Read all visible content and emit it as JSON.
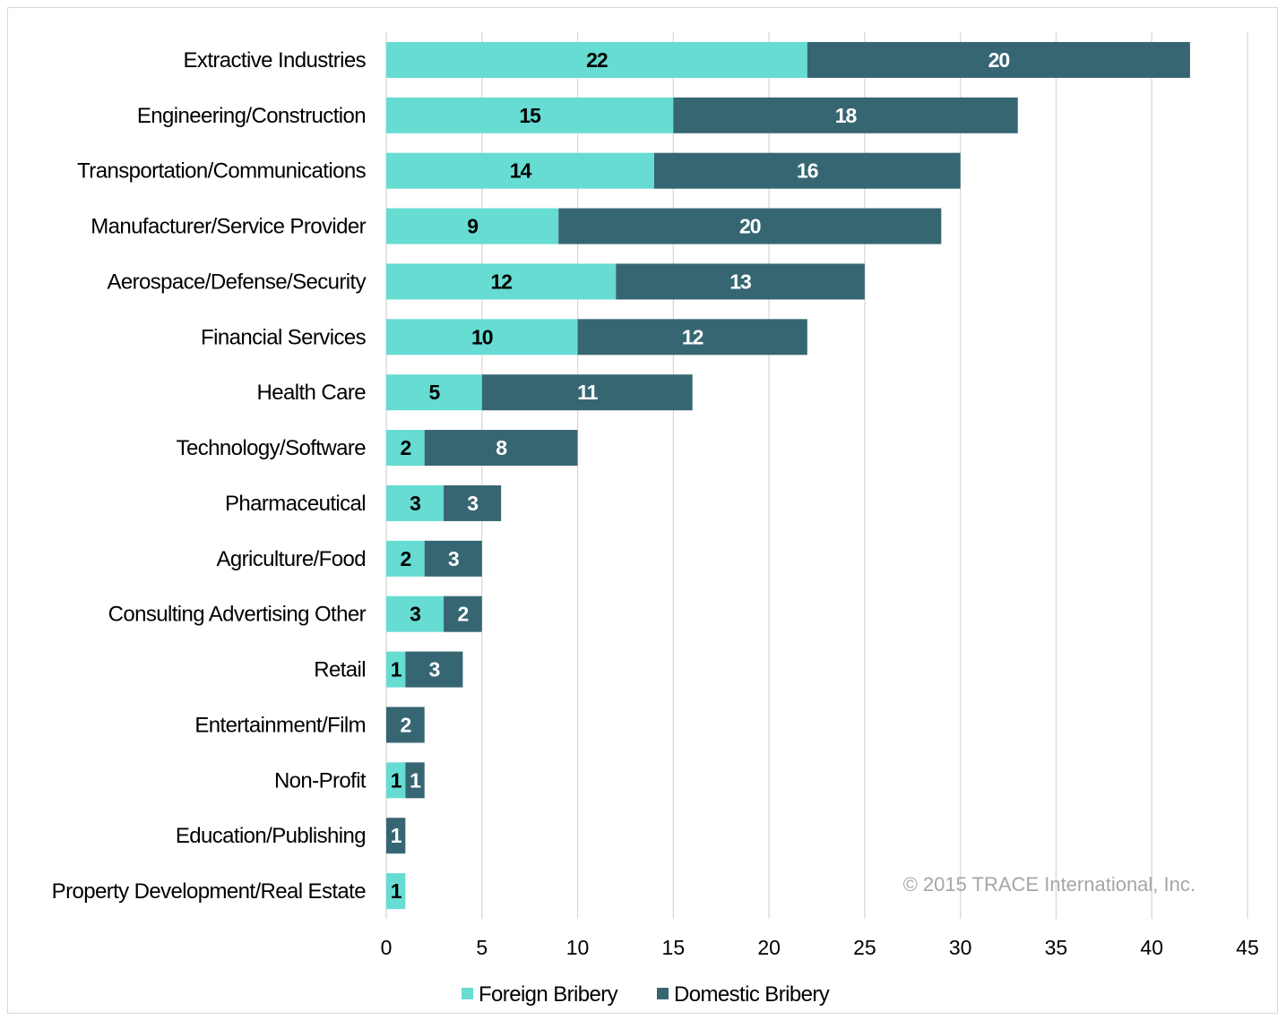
{
  "chart_data": {
    "type": "bar",
    "orientation": "horizontal",
    "stacked": true,
    "categories": [
      "Extractive Industries",
      "Engineering/Construction",
      "Transportation/Communications",
      "Manufacturer/Service Provider",
      "Aerospace/Defense/Security",
      "Financial Services",
      "Health Care",
      "Technology/Software",
      "Pharmaceutical",
      "Agriculture/Food",
      "Consulting Advertising Other",
      "Retail",
      "Entertainment/Film",
      "Non-Profit",
      "Education/Publishing",
      "Property Development/Real Estate"
    ],
    "series": [
      {
        "name": "Foreign Bribery",
        "color": "#66dcd2",
        "label_color": "#000000",
        "values": [
          22,
          15,
          14,
          9,
          12,
          10,
          5,
          2,
          3,
          2,
          3,
          1,
          0,
          1,
          0,
          1
        ]
      },
      {
        "name": "Domestic Bribery",
        "color": "#376673",
        "label_color": "#ffffff",
        "values": [
          20,
          18,
          16,
          20,
          13,
          12,
          11,
          8,
          3,
          3,
          2,
          3,
          2,
          1,
          1,
          0
        ]
      }
    ],
    "xlim": [
      0,
      45
    ],
    "xticks": [
      0,
      5,
      10,
      15,
      20,
      25,
      30,
      35,
      40,
      45
    ],
    "grid": true,
    "legend": "bottom",
    "annotation": "© 2015 TRACE International, Inc."
  }
}
